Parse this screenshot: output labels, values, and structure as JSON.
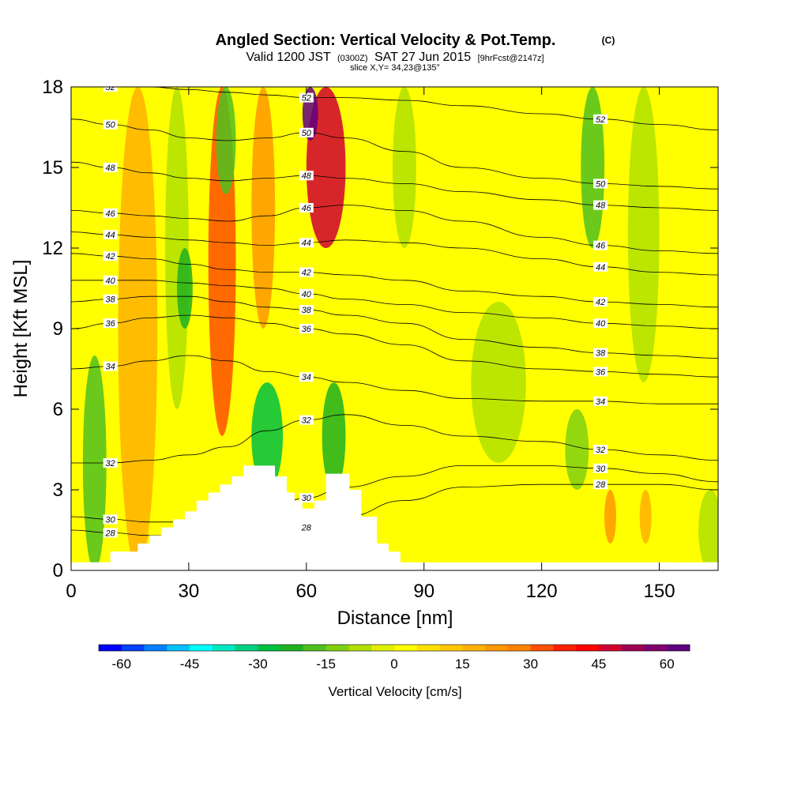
{
  "chart_data": {
    "type": "heatmap",
    "title": "Angled Section: Vertical Velocity & Pot.Temp.",
    "title_suffix": "(C)",
    "subtitle": {
      "a": "Valid 1200 JST",
      "b": "(0300Z)",
      "c": "SAT 27 Jun 2015",
      "d": "[9hrFcst@2147z]"
    },
    "slice_label": "slice X,Y= 34,23@135°",
    "xlabel": "Distance [nm]",
    "ylabel": "Height [Kft MSL]",
    "xlim": [
      0,
      165
    ],
    "ylim": [
      0,
      18
    ],
    "x_ticks": [
      0,
      30,
      60,
      90,
      120,
      150
    ],
    "y_ticks": [
      0,
      3,
      6,
      9,
      12,
      15,
      18
    ],
    "colorbar": {
      "label": "Vertical Velocity [cm/s]",
      "min": -65,
      "max": 65,
      "step": 5,
      "tick_values": [
        -60,
        -45,
        -30,
        -15,
        0,
        15,
        30,
        45,
        60
      ],
      "tick_labels": [
        "-60",
        "-45",
        "-30",
        "-15",
        "0",
        "15",
        "30",
        "45",
        "60"
      ],
      "colors": [
        "#0000ff",
        "#0040ff",
        "#0080ff",
        "#00c0ff",
        "#00ffff",
        "#00e8c0",
        "#00d080",
        "#00c040",
        "#20b020",
        "#50c020",
        "#80d010",
        "#b0e000",
        "#e0f000",
        "#ffff00",
        "#ffe000",
        "#ffc800",
        "#ffb000",
        "#ff9800",
        "#ff8000",
        "#ff5000",
        "#ff2000",
        "#ff0000",
        "#d00030",
        "#a00050",
        "#800070",
        "#600080"
      ]
    },
    "vertical_velocity_bands": [
      {
        "x": 3,
        "w": 6,
        "value": -20,
        "ymin": 0,
        "ymax": 8
      },
      {
        "x": 12,
        "w": 10,
        "value": 15,
        "ymin": 0,
        "ymax": 18
      },
      {
        "x": 24,
        "w": 6,
        "value": -10,
        "ymin": 6,
        "ymax": 18
      },
      {
        "x": 27,
        "w": 4,
        "value": -25,
        "ymin": 9,
        "ymax": 12
      },
      {
        "x": 35,
        "w": 7,
        "value": 30,
        "ymin": 5,
        "ymax": 18
      },
      {
        "x": 37,
        "w": 5,
        "value": -20,
        "ymin": 14,
        "ymax": 18
      },
      {
        "x": 46,
        "w": 8,
        "value": -30,
        "ymin": 3,
        "ymax": 7
      },
      {
        "x": 46,
        "w": 6,
        "value": 20,
        "ymin": 9,
        "ymax": 18
      },
      {
        "x": 60,
        "w": 10,
        "value": 45,
        "ymin": 12,
        "ymax": 18
      },
      {
        "x": 59,
        "w": 4,
        "value": 60,
        "ymin": 16,
        "ymax": 18
      },
      {
        "x": 64,
        "w": 6,
        "value": -25,
        "ymin": 3,
        "ymax": 7
      },
      {
        "x": 82,
        "w": 6,
        "value": -10,
        "ymin": 12,
        "ymax": 18
      },
      {
        "x": 102,
        "w": 14,
        "value": -10,
        "ymin": 4,
        "ymax": 10
      },
      {
        "x": 130,
        "w": 6,
        "value": -20,
        "ymin": 12,
        "ymax": 18
      },
      {
        "x": 126,
        "w": 6,
        "value": -15,
        "ymin": 3,
        "ymax": 6
      },
      {
        "x": 136,
        "w": 3,
        "value": 20,
        "ymin": 1,
        "ymax": 3
      },
      {
        "x": 145,
        "w": 3,
        "value": 15,
        "ymin": 1,
        "ymax": 3
      },
      {
        "x": 142,
        "w": 8,
        "value": -8,
        "ymin": 7,
        "ymax": 18
      },
      {
        "x": 160,
        "w": 6,
        "value": -10,
        "ymin": 0,
        "ymax": 3
      }
    ],
    "terrain": [
      [
        0,
        0.3
      ],
      [
        10,
        0.3
      ],
      [
        10,
        0.7
      ],
      [
        17,
        0.7
      ],
      [
        17,
        1.0
      ],
      [
        20,
        1.0
      ],
      [
        20,
        1.3
      ],
      [
        23,
        1.3
      ],
      [
        23,
        1.6
      ],
      [
        26,
        1.6
      ],
      [
        26,
        1.9
      ],
      [
        29,
        1.9
      ],
      [
        29,
        2.2
      ],
      [
        32,
        2.2
      ],
      [
        32,
        2.6
      ],
      [
        35,
        2.6
      ],
      [
        35,
        2.9
      ],
      [
        38,
        2.9
      ],
      [
        38,
        3.2
      ],
      [
        41,
        3.2
      ],
      [
        41,
        3.5
      ],
      [
        44,
        3.5
      ],
      [
        44,
        3.9
      ],
      [
        52,
        3.9
      ],
      [
        52,
        3.5
      ],
      [
        55,
        3.5
      ],
      [
        55,
        2.9
      ],
      [
        57,
        2.9
      ],
      [
        57,
        2.6
      ],
      [
        59,
        2.6
      ],
      [
        59,
        2.3
      ],
      [
        62,
        2.3
      ],
      [
        62,
        2.6
      ],
      [
        65,
        2.6
      ],
      [
        65,
        3.6
      ],
      [
        71,
        3.6
      ],
      [
        71,
        3.0
      ],
      [
        74,
        3.0
      ],
      [
        74,
        2.0
      ],
      [
        78,
        2.0
      ],
      [
        78,
        1.0
      ],
      [
        81,
        1.0
      ],
      [
        81,
        0.7
      ],
      [
        84,
        0.7
      ],
      [
        84,
        0.3
      ],
      [
        165,
        0.3
      ]
    ],
    "pot_temp_contours": [
      {
        "value": 28,
        "label": "28",
        "y": [
          1.5,
          1.4,
          1.3,
          1.3,
          1.3,
          1.4,
          1.6,
          2.0,
          2.6,
          3.1,
          3.2,
          3.2,
          3.2,
          3.0
        ]
      },
      {
        "value": 30,
        "label": "30",
        "y": [
          2.0,
          1.9,
          1.8,
          1.8,
          1.9,
          2.2,
          2.7,
          3.1,
          3.5,
          3.9,
          3.9,
          3.8,
          3.6,
          3.3
        ]
      },
      {
        "value": 32,
        "label": "32",
        "y": [
          4.0,
          4.0,
          4.1,
          4.3,
          4.6,
          5.2,
          5.6,
          5.8,
          5.4,
          5.0,
          4.8,
          4.5,
          4.3,
          4.1
        ]
      },
      {
        "value": 34,
        "label": "34",
        "y": [
          7.5,
          7.6,
          7.8,
          8.0,
          7.8,
          7.4,
          7.2,
          7.0,
          6.7,
          6.4,
          6.3,
          6.3,
          6.2,
          6.2
        ]
      },
      {
        "value": 36,
        "label": "36",
        "y": [
          9.0,
          9.2,
          9.4,
          9.5,
          9.4,
          9.2,
          9.0,
          8.8,
          8.4,
          7.8,
          7.5,
          7.4,
          7.3,
          7.2
        ]
      },
      {
        "value": 38,
        "label": "38",
        "y": [
          10.0,
          10.1,
          10.2,
          10.2,
          10.0,
          9.8,
          9.7,
          9.5,
          9.2,
          8.6,
          8.3,
          8.1,
          8.0,
          7.9
        ]
      },
      {
        "value": 40,
        "label": "40",
        "y": [
          10.8,
          10.8,
          10.8,
          10.7,
          10.6,
          10.5,
          10.3,
          10.1,
          9.9,
          9.6,
          9.4,
          9.2,
          9.1,
          9.0
        ]
      },
      {
        "value": 42,
        "label": "42",
        "y": [
          11.8,
          11.7,
          11.6,
          11.4,
          11.2,
          11.1,
          11.1,
          11.0,
          10.8,
          10.4,
          10.2,
          10.0,
          9.9,
          9.8
        ]
      },
      {
        "value": 44,
        "label": "44",
        "y": [
          12.6,
          12.5,
          12.4,
          12.3,
          12.2,
          12.1,
          12.2,
          12.3,
          12.2,
          12.0,
          11.6,
          11.3,
          11.1,
          11.0
        ]
      },
      {
        "value": 46,
        "label": "46",
        "y": [
          13.4,
          13.3,
          13.2,
          13.1,
          13.0,
          13.2,
          13.5,
          13.6,
          13.4,
          13.0,
          12.4,
          12.1,
          11.9,
          11.8
        ]
      },
      {
        "value": 48,
        "label": "48",
        "y": [
          15.2,
          15.0,
          14.8,
          14.6,
          14.5,
          14.6,
          14.7,
          14.6,
          14.4,
          14.1,
          13.8,
          13.6,
          13.5,
          13.4
        ]
      },
      {
        "value": 50,
        "label": "50",
        "y": [
          16.8,
          16.6,
          16.4,
          16.1,
          16.0,
          16.1,
          16.3,
          16.1,
          15.6,
          15.0,
          14.6,
          14.4,
          14.3,
          14.2
        ]
      },
      {
        "value": 52,
        "label": "52",
        "y": [
          18.0,
          18.0,
          18.0,
          17.9,
          17.8,
          17.7,
          17.6,
          17.6,
          17.5,
          17.3,
          17.0,
          16.8,
          16.6,
          16.4
        ]
      }
    ],
    "contour_x": [
      0,
      10,
      20,
      30,
      40,
      50,
      60,
      70,
      85,
      100,
      120,
      135,
      150,
      165
    ]
  }
}
